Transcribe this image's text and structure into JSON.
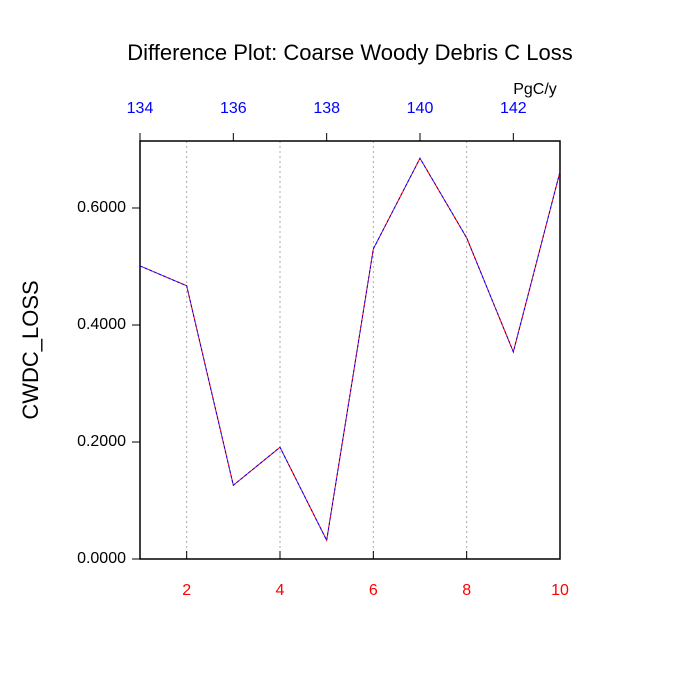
{
  "chart_data": {
    "type": "line",
    "title": "Difference Plot: Coarse Woody Debris C Loss",
    "ylabel": "CWDC_LOSS",
    "x2label": "PgC/y",
    "x": [
      1,
      2,
      3,
      4,
      5,
      6,
      7,
      8,
      9,
      10
    ],
    "series": [
      {
        "color": "#0000ff",
        "dash_color": "#ff0000",
        "values": [
          0.501,
          0.467,
          0.126,
          0.191,
          0.032,
          0.53,
          0.685,
          0.549,
          0.354,
          0.662
        ]
      }
    ],
    "xlim": [
      1,
      10
    ],
    "xticks": [
      2,
      4,
      6,
      8,
      10
    ],
    "xtick_color": "#ff0000",
    "x2lim": [
      134,
      143
    ],
    "x2ticks": [
      134,
      136,
      138,
      140,
      142
    ],
    "x2tick_color": "#0000ff",
    "ylim": [
      0,
      0.7145
    ],
    "yticks": [
      {
        "value": 0,
        "label": "0.0000"
      },
      {
        "value": 0.2,
        "label": "0.2000"
      },
      {
        "value": 0.4,
        "label": "0.4000"
      },
      {
        "value": 0.6,
        "label": "0.6000"
      }
    ],
    "grid": true
  }
}
